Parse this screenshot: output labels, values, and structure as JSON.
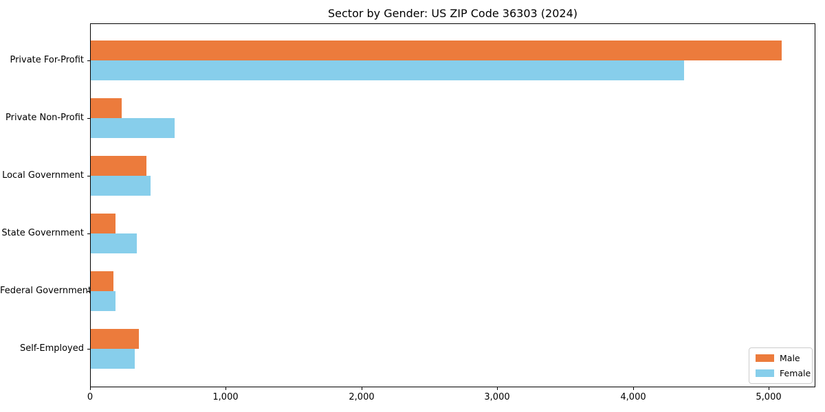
{
  "title": "Sector by Gender: US ZIP Code 36303 (2024)",
  "chart_data": {
    "type": "bar",
    "orientation": "horizontal",
    "title": "Sector by Gender: US ZIP Code 36303 (2024)",
    "xlabel": "",
    "ylabel": "",
    "categories": [
      "Private For-Profit",
      "Private Non-Profit",
      "Local Government",
      "State Government",
      "Federal Government",
      "Self-Employed"
    ],
    "series": [
      {
        "name": "Male",
        "color": "#EC7B3C",
        "values": [
          5090,
          230,
          410,
          180,
          165,
          355
        ]
      },
      {
        "name": "Female",
        "color": "#87CEEB",
        "values": [
          4370,
          620,
          440,
          340,
          180,
          325
        ]
      }
    ],
    "xlim": [
      0,
      5345
    ],
    "xticks": [
      0,
      1000,
      2000,
      3000,
      4000,
      5000
    ],
    "xtick_labels": [
      "0",
      "1,000",
      "2,000",
      "3,000",
      "4,000",
      "5,000"
    ],
    "grid": false,
    "legend_position": "lower right",
    "axis_color": "#000000",
    "background_color": "#ffffff"
  }
}
